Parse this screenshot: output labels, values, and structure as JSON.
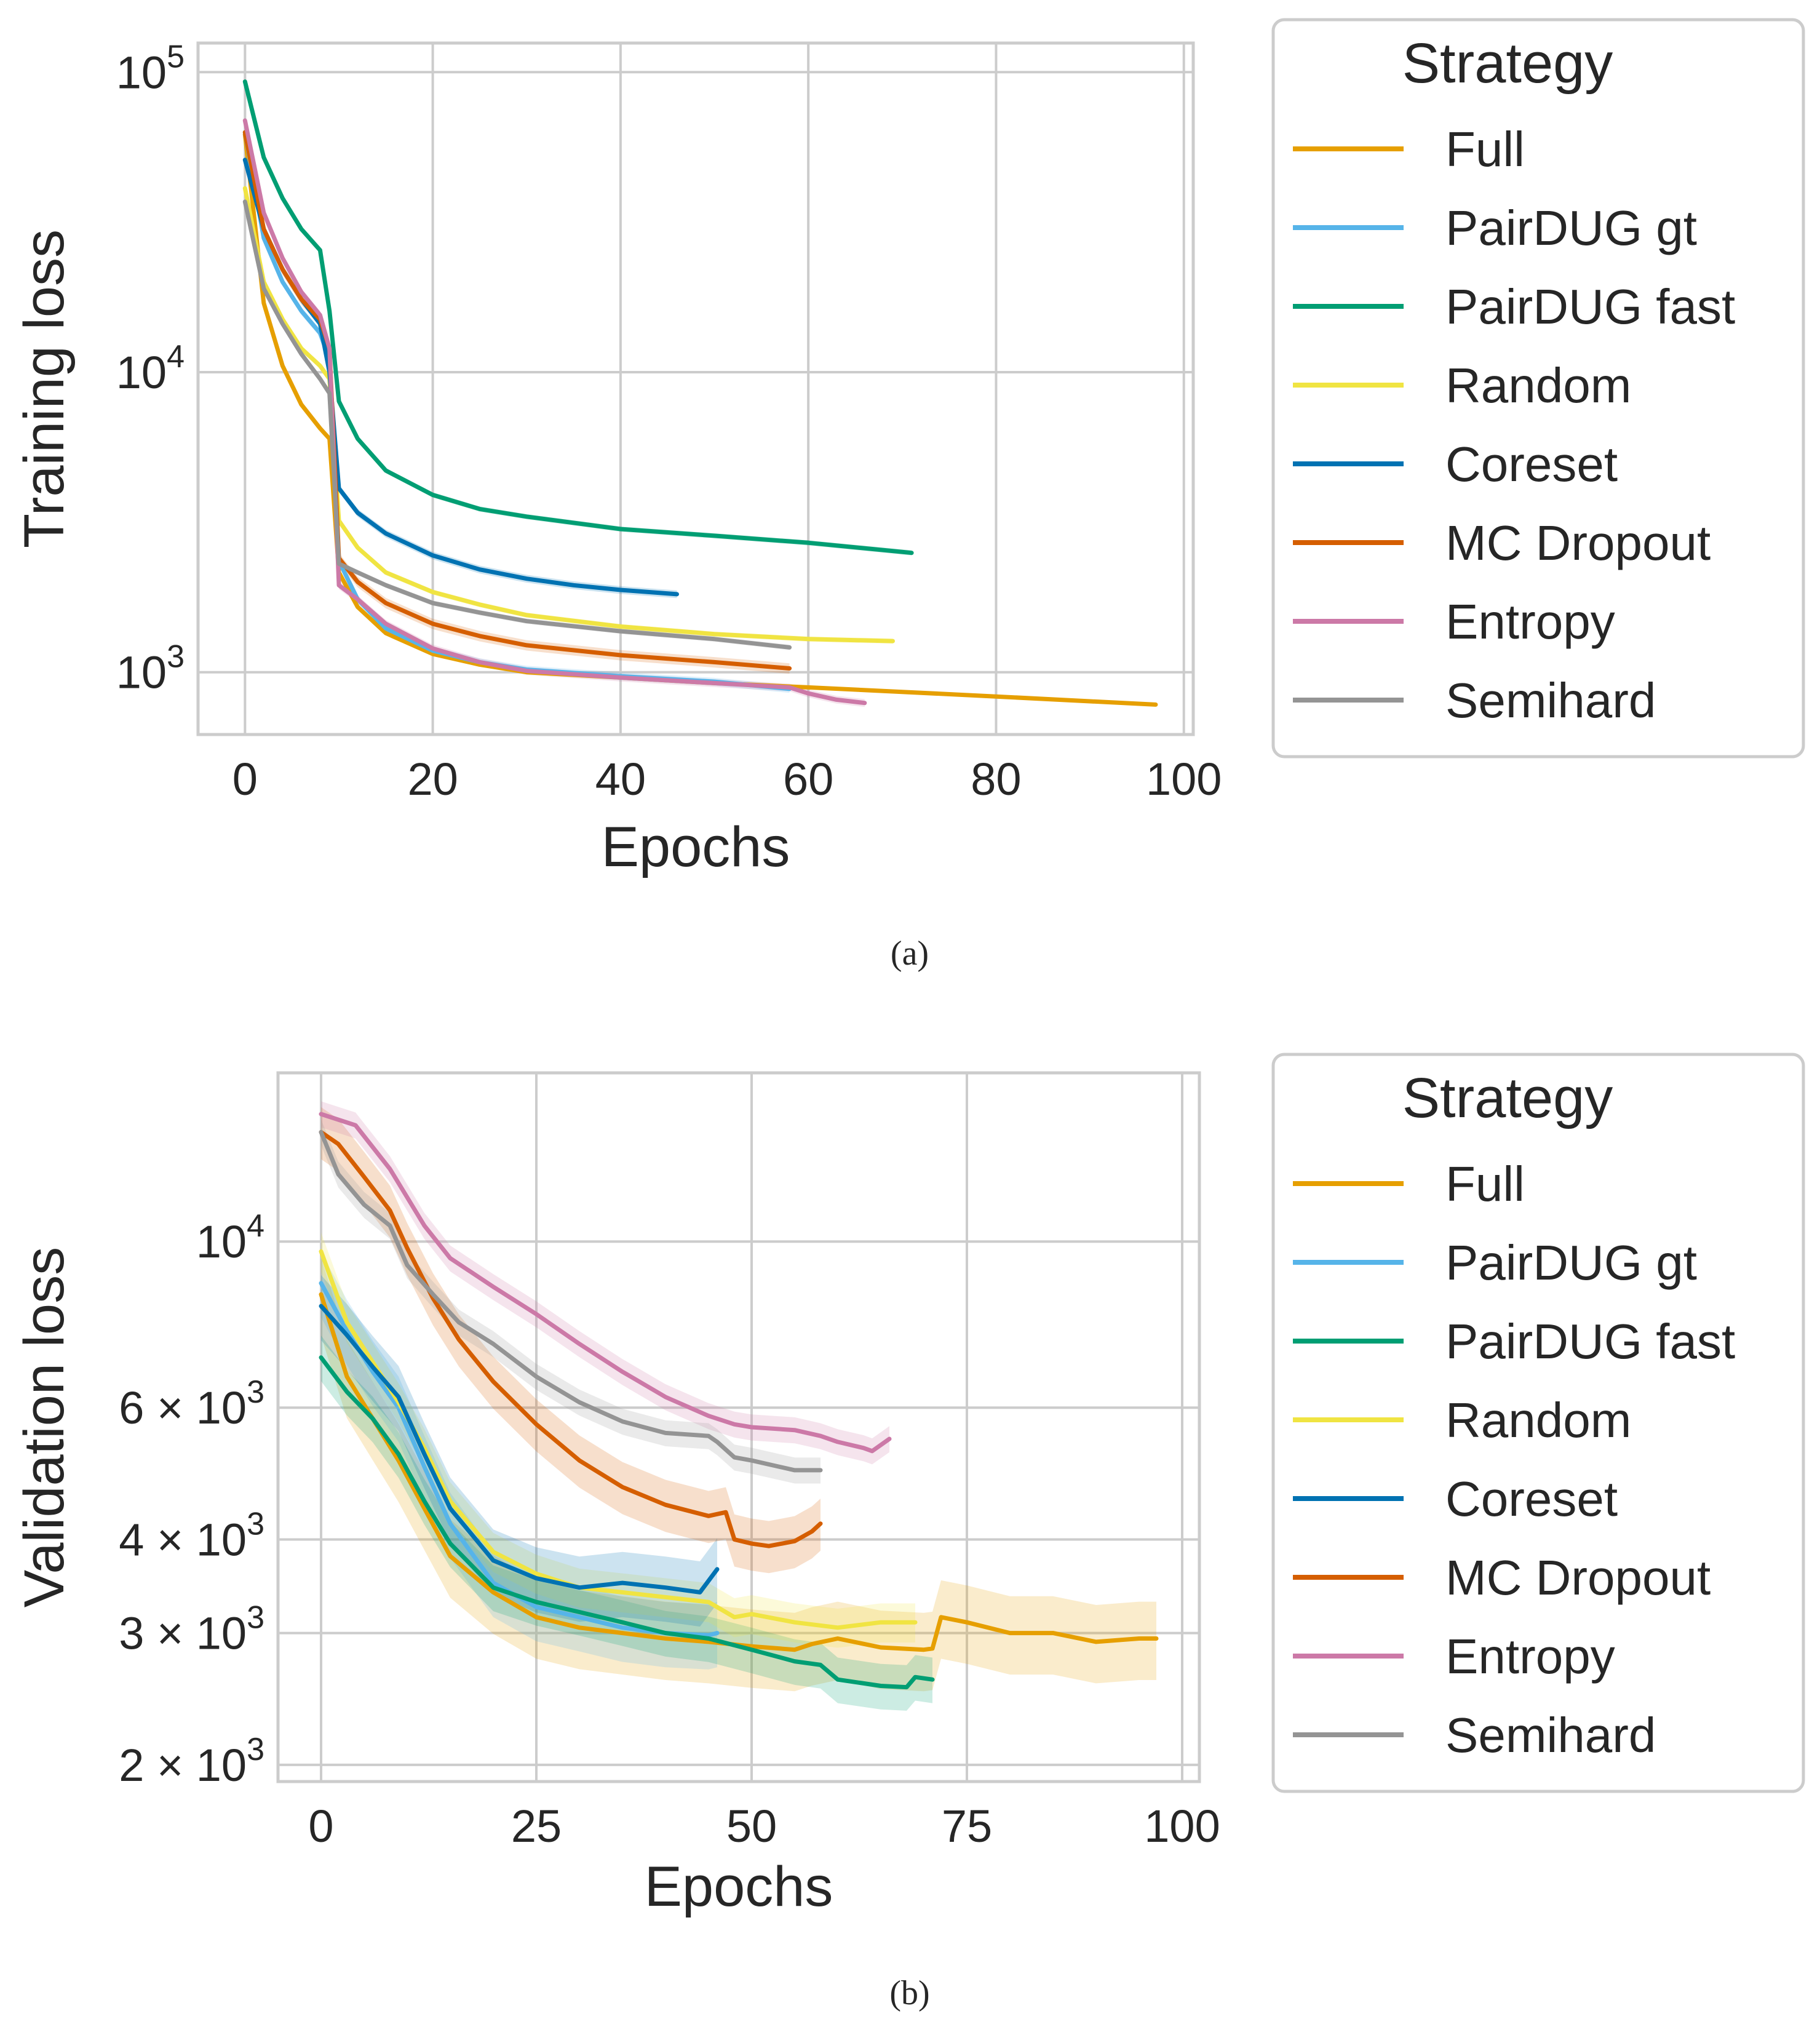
{
  "colors": {
    "Full": "#E69F00",
    "PairDUG gt": "#56B4E9",
    "PairDUG fast": "#009E73",
    "Random": "#F0E442",
    "Coreset": "#0072B2",
    "MC Dropout": "#D55E00",
    "Entropy": "#CC79A7",
    "Semihard": "#949494"
  },
  "chart_data": [
    {
      "id": "a",
      "type": "line",
      "caption": "(a)",
      "title": "",
      "xlabel": "Epochs",
      "ylabel": "Training loss",
      "yscale": "log",
      "xlim": [
        -5,
        101
      ],
      "ylim": [
        620,
        125000
      ],
      "xticks": [
        0,
        20,
        40,
        60,
        80,
        100
      ],
      "xtick_labels": [
        "0",
        "20",
        "40",
        "60",
        "80",
        "100"
      ],
      "yticks": [
        1000,
        10000,
        100000
      ],
      "ytick_labels": [
        {
          "base": "10",
          "exp": "3"
        },
        {
          "base": "10",
          "exp": "4"
        },
        {
          "base": "10",
          "exp": "5"
        }
      ],
      "legend": {
        "title": "Strategy",
        "position": "outside-right-top"
      },
      "series": [
        {
          "name": "Full",
          "band": 0.0,
          "x": [
            0,
            2,
            4,
            6,
            8,
            9,
            10,
            12,
            15,
            20,
            25,
            30,
            40,
            50,
            60,
            70,
            80,
            90,
            97
          ],
          "values": [
            62000,
            17000,
            10500,
            7800,
            6500,
            6000,
            2150,
            1650,
            1350,
            1150,
            1060,
            1000,
            960,
            920,
            890,
            860,
            830,
            800,
            780
          ]
        },
        {
          "name": "PairDUG gt",
          "band": 0.03,
          "x": [
            0,
            2,
            4,
            6,
            8,
            9,
            10,
            12,
            15,
            20,
            25,
            30,
            40,
            50,
            58
          ],
          "values": [
            63000,
            28000,
            20000,
            16000,
            13500,
            11000,
            2350,
            1750,
            1400,
            1180,
            1080,
            1020,
            970,
            930,
            880
          ]
        },
        {
          "name": "PairDUG fast",
          "band": 0.02,
          "x": [
            0,
            2,
            4,
            6,
            8,
            9,
            10,
            12,
            15,
            20,
            25,
            30,
            40,
            50,
            60,
            71
          ],
          "values": [
            93000,
            52000,
            38000,
            30000,
            25500,
            16000,
            8000,
            6000,
            4700,
            3900,
            3500,
            3300,
            3000,
            2850,
            2700,
            2500
          ]
        },
        {
          "name": "Random",
          "band": 0.02,
          "x": [
            0,
            2,
            4,
            6,
            8,
            9,
            10,
            12,
            15,
            20,
            25,
            30,
            40,
            50,
            60,
            69
          ],
          "values": [
            41000,
            20000,
            15000,
            12000,
            10500,
            9500,
            3200,
            2600,
            2150,
            1850,
            1680,
            1550,
            1420,
            1340,
            1290,
            1270
          ]
        },
        {
          "name": "Coreset",
          "band": 0.03,
          "x": [
            0,
            2,
            4,
            6,
            8,
            9,
            10,
            12,
            15,
            20,
            25,
            30,
            35,
            40,
            46
          ],
          "values": [
            51000,
            30000,
            22000,
            17500,
            14500,
            10000,
            4100,
            3400,
            2900,
            2450,
            2200,
            2050,
            1950,
            1880,
            1820
          ]
        },
        {
          "name": "MC Dropout",
          "band": 0.04,
          "x": [
            0,
            2,
            4,
            6,
            8,
            9,
            10,
            12,
            15,
            20,
            25,
            30,
            40,
            50,
            58
          ],
          "values": [
            63000,
            30000,
            22000,
            17500,
            15000,
            12000,
            2400,
            2000,
            1700,
            1450,
            1320,
            1230,
            1140,
            1080,
            1030
          ]
        },
        {
          "name": "Entropy",
          "band": 0.03,
          "x": [
            0,
            2,
            4,
            6,
            8,
            9,
            10,
            12,
            15,
            20,
            25,
            30,
            40,
            50,
            58,
            60,
            63,
            66
          ],
          "values": [
            69000,
            34000,
            24000,
            18500,
            15500,
            12000,
            1950,
            1750,
            1450,
            1200,
            1080,
            1010,
            960,
            920,
            890,
            850,
            810,
            790
          ]
        },
        {
          "name": "Semihard",
          "band": 0.02,
          "x": [
            0,
            2,
            4,
            6,
            8,
            9,
            10,
            12,
            15,
            20,
            25,
            30,
            40,
            50,
            58
          ],
          "values": [
            37000,
            19000,
            14500,
            11500,
            9500,
            8500,
            2300,
            2150,
            1950,
            1700,
            1580,
            1480,
            1370,
            1290,
            1210
          ]
        }
      ]
    },
    {
      "id": "b",
      "type": "line",
      "caption": "(b)",
      "title": "",
      "xlabel": "Epochs",
      "ylabel": "Validation loss",
      "yscale": "log",
      "xlim": [
        -5,
        102
      ],
      "ylim": [
        1900,
        16800
      ],
      "xticks": [
        0,
        25,
        50,
        75,
        100
      ],
      "xtick_labels": [
        "0",
        "25",
        "50",
        "75",
        "100"
      ],
      "yticks": [
        2000,
        3000,
        4000,
        6000,
        10000
      ],
      "ytick_labels": [
        {
          "base": "2 × 10",
          "exp": "3"
        },
        {
          "base": "3 × 10",
          "exp": "3"
        },
        {
          "base": "4 × 10",
          "exp": "3"
        },
        {
          "base": "6 × 10",
          "exp": "3"
        },
        {
          "base": "10",
          "exp": "4"
        }
      ],
      "legend": {
        "title": "Strategy",
        "position": "outside-right-top"
      },
      "series": [
        {
          "name": "Full",
          "band": 0.12,
          "x": [
            0,
            3,
            6,
            9,
            12,
            15,
            20,
            25,
            30,
            35,
            40,
            45,
            50,
            55,
            57,
            60,
            65,
            70,
            71,
            72,
            75,
            80,
            85,
            90,
            95,
            97
          ],
          "values": [
            8500,
            6600,
            5800,
            5100,
            4400,
            3800,
            3400,
            3150,
            3050,
            3000,
            2950,
            2920,
            2880,
            2850,
            2900,
            2950,
            2870,
            2850,
            2860,
            3150,
            3100,
            3000,
            3000,
            2920,
            2950,
            2950
          ]
        },
        {
          "name": "PairDUG gt",
          "band": 0.1,
          "x": [
            0,
            3,
            6,
            9,
            12,
            15,
            20,
            25,
            30,
            35,
            40,
            45,
            46
          ],
          "values": [
            8800,
            7600,
            6700,
            6000,
            5000,
            4200,
            3500,
            3250,
            3150,
            3050,
            3000,
            2980,
            3000
          ]
        },
        {
          "name": "PairDUG fast",
          "band": 0.07,
          "x": [
            0,
            3,
            6,
            9,
            12,
            15,
            20,
            25,
            30,
            35,
            40,
            45,
            50,
            55,
            58,
            60,
            65,
            68,
            69,
            71
          ],
          "values": [
            7000,
            6300,
            5800,
            5200,
            4500,
            3950,
            3450,
            3300,
            3200,
            3100,
            3000,
            2950,
            2850,
            2750,
            2720,
            2600,
            2550,
            2540,
            2620,
            2600
          ]
        },
        {
          "name": "Random",
          "band": 0.06,
          "x": [
            0,
            3,
            6,
            9,
            12,
            15,
            20,
            25,
            30,
            35,
            40,
            45,
            48,
            50,
            55,
            60,
            65,
            69
          ],
          "values": [
            9700,
            7800,
            6900,
            6100,
            5300,
            4500,
            3850,
            3600,
            3450,
            3400,
            3350,
            3300,
            3150,
            3180,
            3100,
            3050,
            3100,
            3100
          ]
        },
        {
          "name": "Coreset",
          "band": 0.1,
          "x": [
            0,
            3,
            6,
            9,
            12,
            15,
            20,
            25,
            30,
            35,
            40,
            44,
            46
          ],
          "values": [
            8200,
            7500,
            6800,
            6200,
            5200,
            4400,
            3750,
            3550,
            3450,
            3500,
            3450,
            3400,
            3650
          ]
        },
        {
          "name": "MC Dropout",
          "band": 0.08,
          "x": [
            0,
            2,
            5,
            8,
            10,
            13,
            16,
            20,
            25,
            30,
            35,
            40,
            45,
            47,
            48,
            50,
            52,
            55,
            57,
            58
          ],
          "values": [
            14000,
            13500,
            12200,
            11000,
            9800,
            8400,
            7400,
            6500,
            5700,
            5100,
            4700,
            4450,
            4300,
            4350,
            4000,
            3950,
            3920,
            3980,
            4100,
            4200
          ]
        },
        {
          "name": "Entropy",
          "band": 0.04,
          "x": [
            0,
            4,
            8,
            12,
            15,
            20,
            25,
            30,
            35,
            40,
            45,
            48,
            50,
            55,
            58,
            60,
            63,
            64,
            66
          ],
          "values": [
            14800,
            14300,
            12500,
            10500,
            9500,
            8700,
            8000,
            7300,
            6700,
            6200,
            5850,
            5700,
            5650,
            5600,
            5500,
            5400,
            5300,
            5250,
            5450
          ]
        },
        {
          "name": "Semihard",
          "band": 0.04,
          "x": [
            0,
            2,
            5,
            8,
            10,
            13,
            16,
            20,
            25,
            30,
            35,
            40,
            45,
            46,
            48,
            50,
            55,
            58
          ],
          "values": [
            14000,
            12300,
            11200,
            10500,
            9300,
            8500,
            7800,
            7300,
            6600,
            6100,
            5750,
            5550,
            5500,
            5400,
            5150,
            5100,
            4950,
            4950
          ]
        }
      ]
    }
  ]
}
